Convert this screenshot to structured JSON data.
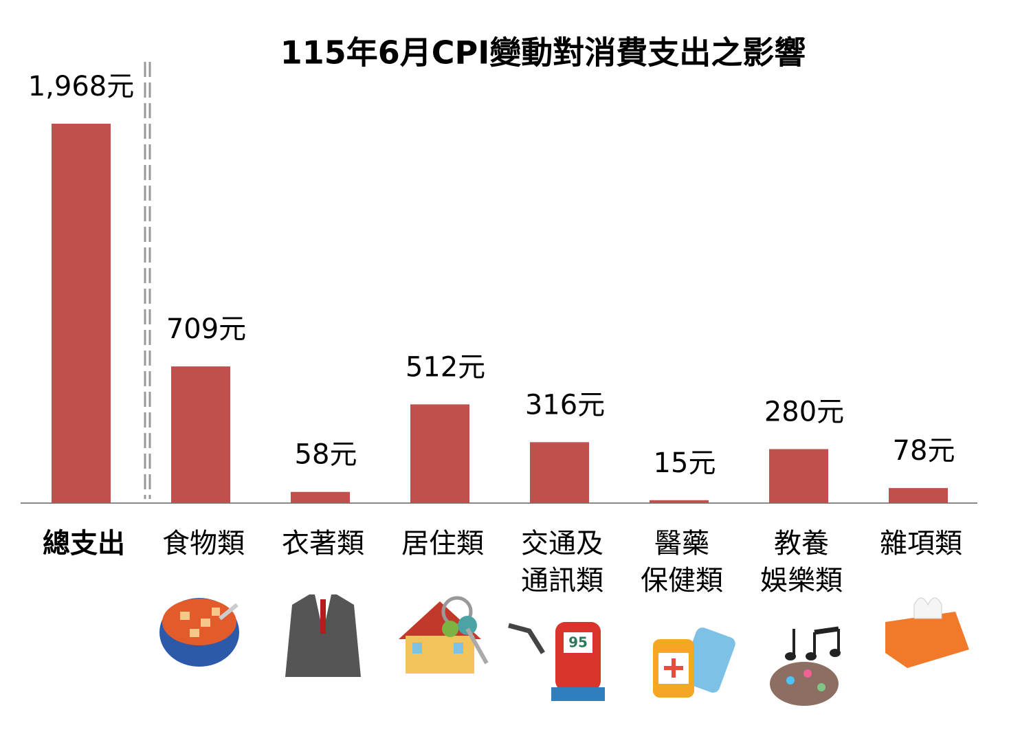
{
  "chart_data": {
    "type": "bar",
    "title": "115年6月CPI變動對消費支出之影響",
    "categories": [
      "總支出",
      "食物類",
      "衣著類",
      "居住類",
      "交通及\n通訊類",
      "醫藥\n保健類",
      "教養\n娛樂類",
      "雜項類"
    ],
    "values": [
      1968,
      709,
      58,
      512,
      316,
      15,
      280,
      78
    ],
    "value_labels": [
      "1,968元",
      "709元",
      "58元",
      "512元",
      "316元",
      "15元",
      "280元",
      "78元"
    ],
    "color": "#c0504d"
  }
}
